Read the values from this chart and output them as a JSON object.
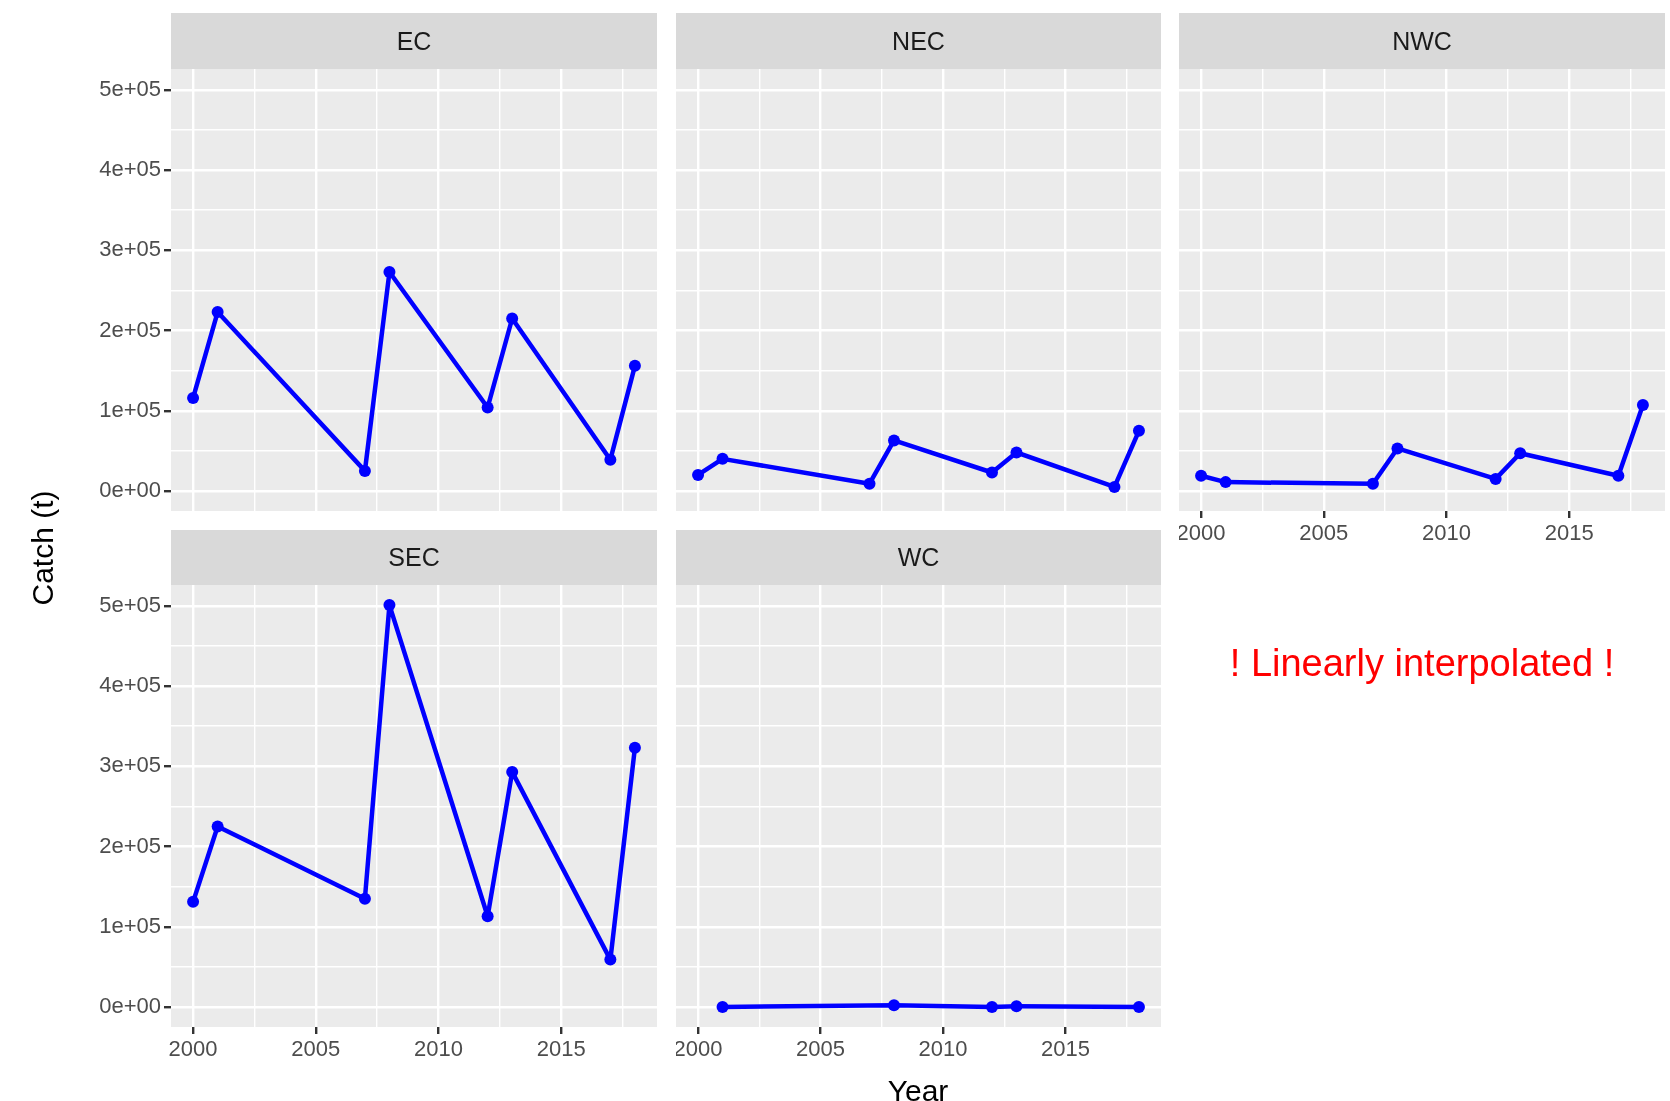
{
  "chart_data": [
    {
      "type": "line",
      "title": "EC",
      "ylabel": "Catch (t)",
      "x": [
        2000,
        2001,
        2007,
        2008,
        2012,
        2013,
        2017,
        2018
      ],
      "series": [
        {
          "color": "#0000ff",
          "values": [
            116000,
            223000,
            25000,
            273000,
            104000,
            215000,
            39000,
            156000
          ]
        }
      ],
      "xlim": [
        1999.1,
        2018.9
      ],
      "ylim": [
        -25000,
        526000
      ],
      "xticks": [
        2000,
        {
          "value": 2002.5,
          "label": null
        },
        2005,
        {
          "value": 2007.5,
          "label": null
        },
        2010,
        {
          "value": 2012.5,
          "label": null
        },
        2015,
        {
          "value": 2017.5,
          "label": null
        }
      ],
      "yticks": [
        {
          "value": 0,
          "label": "0e+00"
        },
        {
          "value": 50000,
          "label": null
        },
        {
          "value": 100000,
          "label": "1e+05"
        },
        {
          "value": 150000,
          "label": null
        },
        {
          "value": 200000,
          "label": "2e+05"
        },
        {
          "value": 250000,
          "label": null
        },
        {
          "value": 300000,
          "label": "3e+05"
        },
        {
          "value": 350000,
          "label": null
        },
        {
          "value": 400000,
          "label": "4e+05"
        },
        {
          "value": 450000,
          "label": null
        },
        {
          "value": 500000,
          "label": "5e+05"
        }
      ],
      "grid": true,
      "marker": "circle",
      "line_style": "solid",
      "tick_labels": "y"
    },
    {
      "type": "line",
      "title": "NEC",
      "x": [
        2000,
        2001,
        2007,
        2008,
        2012,
        2013,
        2017,
        2018
      ],
      "series": [
        {
          "color": "#0000ff",
          "values": [
            20000,
            40000,
            9000,
            63000,
            23000,
            48000,
            5000,
            75000
          ]
        }
      ],
      "xlim": [
        1999.1,
        2018.9
      ],
      "ylim": [
        -25000,
        526000
      ],
      "xticks": [
        2000,
        {
          "value": 2002.5,
          "label": null
        },
        2005,
        {
          "value": 2007.5,
          "label": null
        },
        2010,
        {
          "value": 2012.5,
          "label": null
        },
        2015,
        {
          "value": 2017.5,
          "label": null
        }
      ],
      "yticks": [
        0,
        {
          "value": 50000,
          "label": null
        },
        100000,
        {
          "value": 150000,
          "label": null
        },
        200000,
        {
          "value": 250000,
          "label": null
        },
        300000,
        {
          "value": 350000,
          "label": null
        },
        400000,
        {
          "value": 450000,
          "label": null
        },
        500000
      ],
      "grid": true,
      "marker": "circle",
      "line_style": "solid",
      "tick_labels": false
    },
    {
      "type": "line",
      "title": "NWC",
      "x": [
        2000,
        2001,
        2007,
        2008,
        2012,
        2013,
        2017,
        2018
      ],
      "series": [
        {
          "color": "#0000ff",
          "values": [
            19000,
            11000,
            9000,
            53000,
            15000,
            47000,
            19000,
            107000
          ]
        }
      ],
      "xlim": [
        1999.1,
        2018.9
      ],
      "ylim": [
        -25000,
        526000
      ],
      "xticks": [
        2000,
        {
          "value": 2002.5,
          "label": null
        },
        2005,
        {
          "value": 2007.5,
          "label": null
        },
        2010,
        {
          "value": 2012.5,
          "label": null
        },
        2015,
        {
          "value": 2017.5,
          "label": null
        }
      ],
      "yticks": [
        0,
        {
          "value": 50000,
          "label": null
        },
        100000,
        {
          "value": 150000,
          "label": null
        },
        200000,
        {
          "value": 250000,
          "label": null
        },
        300000,
        {
          "value": 350000,
          "label": null
        },
        400000,
        {
          "value": 450000,
          "label": null
        },
        500000
      ],
      "grid": true,
      "marker": "circle",
      "line_style": "solid",
      "tick_labels": "x"
    },
    {
      "type": "line",
      "title": "SEC",
      "x": [
        2000,
        2001,
        2007,
        2008,
        2012,
        2013,
        2017,
        2018
      ],
      "series": [
        {
          "color": "#0000ff",
          "values": [
            131000,
            225000,
            135000,
            501000,
            113000,
            293000,
            59000,
            323000
          ]
        }
      ],
      "xlim": [
        1999.1,
        2018.9
      ],
      "ylim": [
        -25000,
        526000
      ],
      "xticks": [
        2000,
        {
          "value": 2002.5,
          "label": null
        },
        2005,
        {
          "value": 2007.5,
          "label": null
        },
        2010,
        {
          "value": 2012.5,
          "label": null
        },
        2015,
        {
          "value": 2017.5,
          "label": null
        }
      ],
      "yticks": [
        {
          "value": 0,
          "label": "0e+00"
        },
        {
          "value": 50000,
          "label": null
        },
        {
          "value": 100000,
          "label": "1e+05"
        },
        {
          "value": 150000,
          "label": null
        },
        {
          "value": 200000,
          "label": "2e+05"
        },
        {
          "value": 250000,
          "label": null
        },
        {
          "value": 300000,
          "label": "3e+05"
        },
        {
          "value": 350000,
          "label": null
        },
        {
          "value": 400000,
          "label": "4e+05"
        },
        {
          "value": 450000,
          "label": null
        },
        {
          "value": 500000,
          "label": "5e+05"
        }
      ],
      "grid": true,
      "marker": "circle",
      "line_style": "solid"
    },
    {
      "type": "line",
      "title": "WC",
      "xlabel": "Year",
      "annotations": [
        "! Linearly interpolated !"
      ],
      "x": [
        2001,
        2008,
        2012,
        2013,
        2018
      ],
      "series": [
        {
          "color": "#0000ff",
          "values": [
            0,
            2000,
            0,
            1000,
            0
          ]
        }
      ],
      "xlim": [
        1999.1,
        2018.9
      ],
      "ylim": [
        -25000,
        526000
      ],
      "xticks": [
        2000,
        {
          "value": 2002.5,
          "label": null
        },
        2005,
        {
          "value": 2007.5,
          "label": null
        },
        2010,
        {
          "value": 2012.5,
          "label": null
        },
        2015,
        {
          "value": 2017.5,
          "label": null
        }
      ],
      "yticks": [
        0,
        {
          "value": 50000,
          "label": null
        },
        100000,
        {
          "value": 150000,
          "label": null
        },
        200000,
        {
          "value": 250000,
          "label": null
        },
        300000,
        {
          "value": 350000,
          "label": null
        },
        400000,
        {
          "value": 450000,
          "label": null
        },
        500000
      ],
      "grid": true,
      "marker": "circle",
      "line_style": "solid",
      "tick_labels": "x"
    }
  ]
}
